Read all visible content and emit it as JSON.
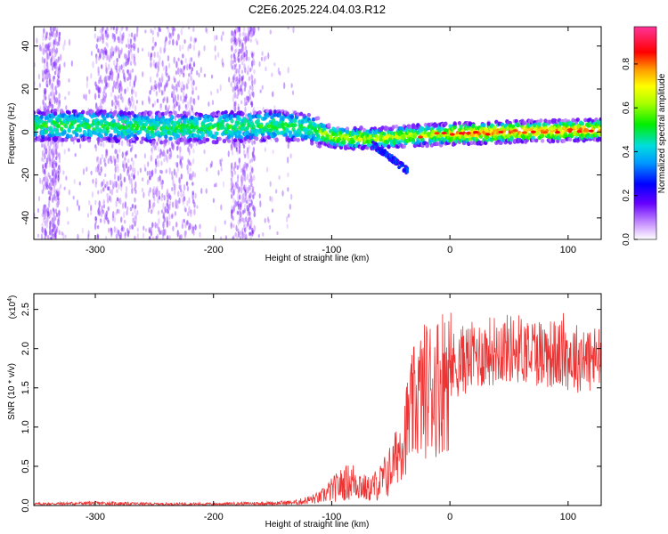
{
  "figure": {
    "title": "C2E6.2025.224.04.03.R12"
  },
  "chart_data": [
    {
      "type": "heatmap",
      "name": "spectrogram",
      "title": "C2E6.2025.224.04.03.R12",
      "xlabel": "Height of straight line (km)",
      "ylabel": "Frequency (Hz)",
      "xlim": [
        -352,
        128
      ],
      "ylim": [
        -50,
        49
      ],
      "xticks": [
        -300,
        -200,
        -100,
        0,
        100
      ],
      "yticks": [
        -40,
        -20,
        0,
        20,
        40
      ],
      "colorbar": {
        "label": "Normalized spectral amplitude",
        "range": [
          0,
          0.97
        ],
        "ticks": [
          0.0,
          0.2,
          0.4,
          0.6,
          0.8
        ],
        "tick_labels": [
          "0.0",
          "0.2",
          "0.4",
          "0.6",
          "0.8"
        ]
      },
      "ridge_center_hz": [
        {
          "x": -350,
          "y": 3
        },
        {
          "x": -300,
          "y": 3
        },
        {
          "x": -250,
          "y": 2
        },
        {
          "x": -200,
          "y": 2
        },
        {
          "x": -150,
          "y": 3
        },
        {
          "x": -120,
          "y": 2
        },
        {
          "x": -100,
          "y": -2
        },
        {
          "x": -80,
          "y": -3
        },
        {
          "x": -60,
          "y": -3
        },
        {
          "x": -40,
          "y": -2
        },
        {
          "x": 0,
          "y": -1
        },
        {
          "x": 50,
          "y": 0
        },
        {
          "x": 128,
          "y": 1
        }
      ],
      "secondary_branch_hz": [
        {
          "x": -65,
          "y": -6
        },
        {
          "x": -50,
          "y": -12
        },
        {
          "x": -36,
          "y": -18
        }
      ]
    },
    {
      "type": "line",
      "name": "snr",
      "xlabel": "Height of straight line (km)",
      "ylabel": "SNR (10 * v/v)",
      "y_multiplier_label": "(x10",
      "y_multiplier_exp": "4",
      "y_multiplier_close": ")",
      "xlim": [
        -352,
        128
      ],
      "ylim": [
        0,
        2.7
      ],
      "xticks": [
        -300,
        -200,
        -100,
        0,
        100
      ],
      "yticks": [
        0.0,
        0.5,
        1.0,
        1.5,
        2.0,
        2.5
      ],
      "ytick_labels": [
        "0.0",
        "0.5",
        "1.0",
        "1.5",
        "2.0",
        "2.5"
      ],
      "series": [
        {
          "color": "#ee3333",
          "envelope": [
            {
              "x": -352,
              "y": 0.02
            },
            {
              "x": -300,
              "y": 0.03
            },
            {
              "x": -250,
              "y": 0.02
            },
            {
              "x": -200,
              "y": 0.02
            },
            {
              "x": -150,
              "y": 0.03
            },
            {
              "x": -130,
              "y": 0.04
            },
            {
              "x": -110,
              "y": 0.1
            },
            {
              "x": -100,
              "y": 0.2
            },
            {
              "x": -90,
              "y": 0.28
            },
            {
              "x": -80,
              "y": 0.32
            },
            {
              "x": -70,
              "y": 0.2
            },
            {
              "x": -60,
              "y": 0.28
            },
            {
              "x": -50,
              "y": 0.45
            },
            {
              "x": -40,
              "y": 0.85
            },
            {
              "x": -30,
              "y": 1.3
            },
            {
              "x": -20,
              "y": 1.5
            },
            {
              "x": -10,
              "y": 1.55
            },
            {
              "x": 0,
              "y": 1.75
            },
            {
              "x": 10,
              "y": 1.85
            },
            {
              "x": 20,
              "y": 1.9
            },
            {
              "x": 40,
              "y": 2.0
            },
            {
              "x": 60,
              "y": 2.0
            },
            {
              "x": 80,
              "y": 1.95
            },
            {
              "x": 100,
              "y": 1.9
            },
            {
              "x": 128,
              "y": 1.85
            }
          ]
        }
      ]
    }
  ]
}
